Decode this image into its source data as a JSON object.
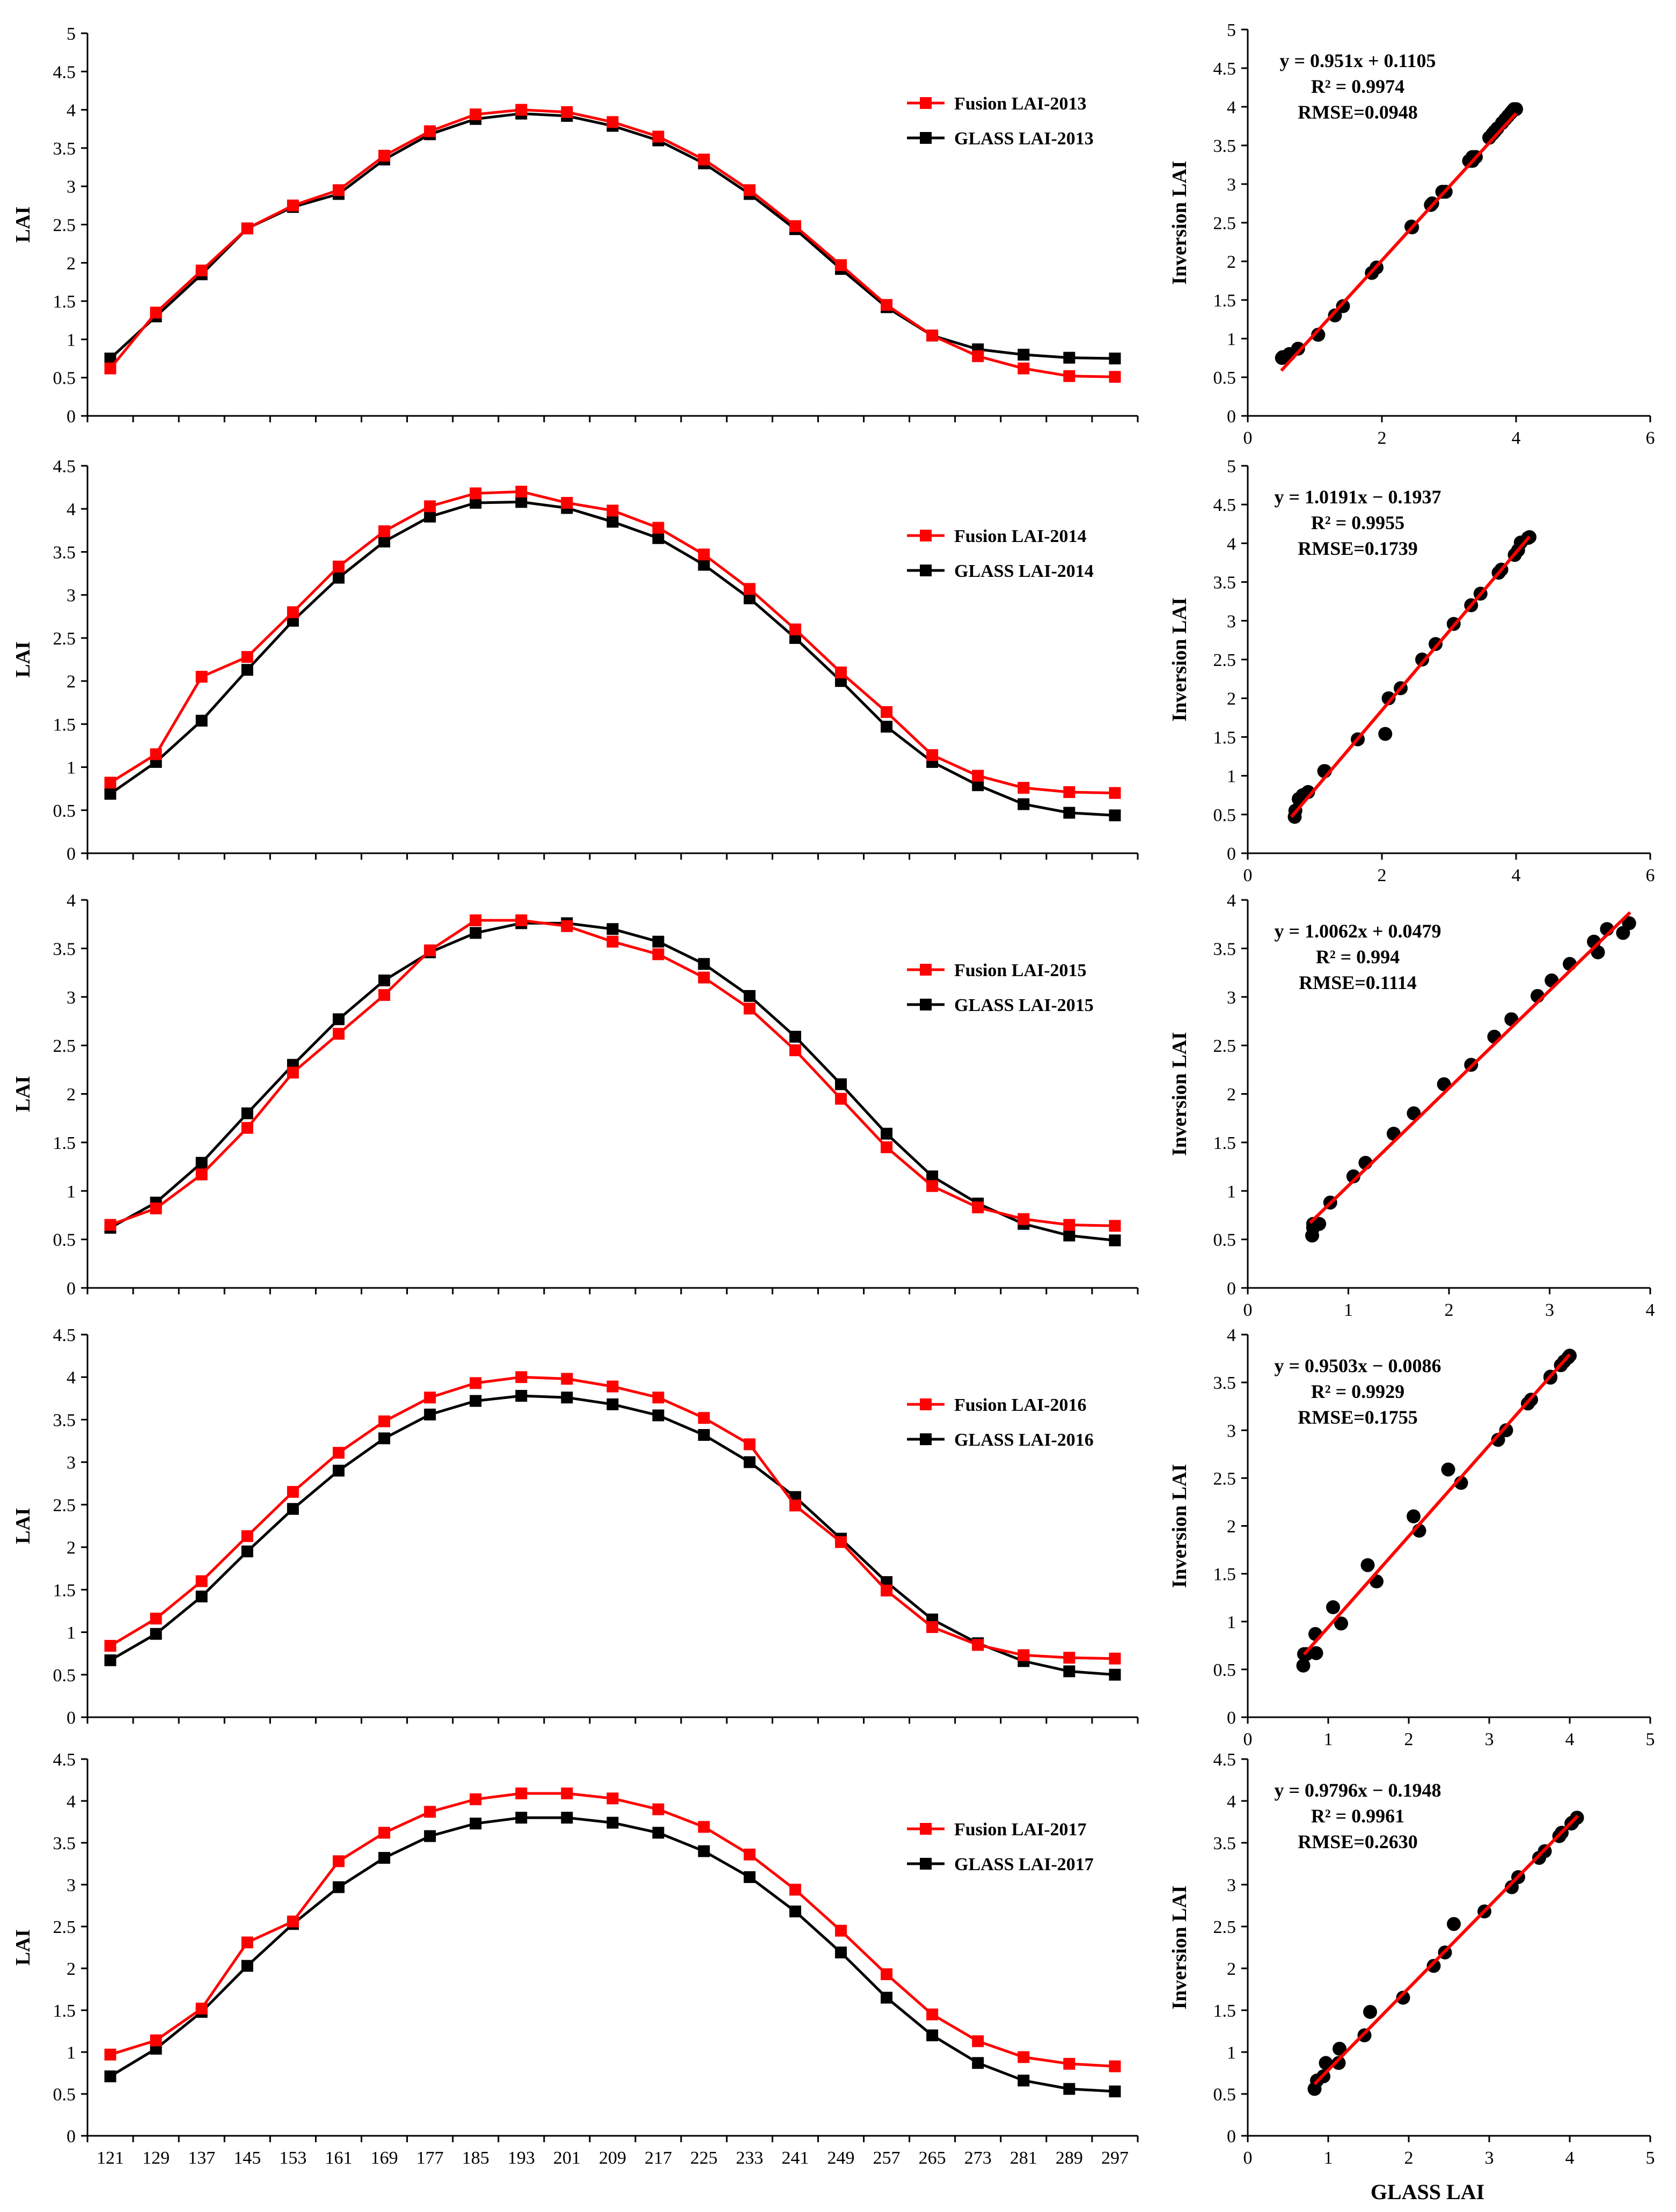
{
  "figure": {
    "xlabel_shared": "GLASS LAI",
    "colors": {
      "fusion": "#ff0000",
      "glass": "#000000",
      "fit": "#ff0000",
      "axis": "#000000"
    }
  },
  "chart_data": [
    {
      "type": "line",
      "year": "2013",
      "ylabel": "LAI",
      "x": [
        121,
        129,
        137,
        145,
        153,
        161,
        169,
        177,
        185,
        193,
        201,
        209,
        217,
        225,
        233,
        241,
        249,
        257,
        265,
        273,
        281,
        289,
        297
      ],
      "ylim": [
        0,
        5
      ],
      "yticks": [
        "0",
        "0.5",
        "1",
        "1.5",
        "2",
        "2.5",
        "3",
        "3.5",
        "4",
        "4.5",
        "5"
      ],
      "series": [
        {
          "name": "Fusion LAI-2013",
          "color": "#ff0000",
          "values": [
            0.62,
            1.35,
            1.9,
            2.45,
            2.75,
            2.95,
            3.4,
            3.72,
            3.94,
            4.0,
            3.97,
            3.84,
            3.65,
            3.35,
            2.95,
            2.48,
            1.97,
            1.45,
            1.05,
            0.78,
            0.62,
            0.52,
            0.51
          ]
        },
        {
          "name": "GLASS LAI-2013",
          "color": "#000000",
          "values": [
            0.75,
            1.3,
            1.85,
            2.45,
            2.73,
            2.9,
            3.35,
            3.68,
            3.88,
            3.95,
            3.92,
            3.79,
            3.6,
            3.3,
            2.9,
            2.44,
            1.92,
            1.42,
            1.05,
            0.87,
            0.8,
            0.76,
            0.75
          ]
        }
      ]
    },
    {
      "type": "scatter",
      "year": "2013",
      "ylabel": "Inversion LAI",
      "equation": "y = 0.951x + 0.1105",
      "r2": "R² = 0.9974",
      "rmse": "RMSE=0.0948",
      "slope": 0.951,
      "intercept": 0.1105,
      "fit_x": [
        0.5,
        4.0
      ],
      "xlim": [
        0,
        6
      ],
      "ylim": [
        0,
        5
      ],
      "xticks": [
        "0",
        "2",
        "4",
        "6"
      ],
      "yticks": [
        "0",
        "0.5",
        "1",
        "1.5",
        "2",
        "2.5",
        "3",
        "3.5",
        "4",
        "4.5",
        "5"
      ],
      "x": [
        0.51,
        0.52,
        0.62,
        0.75,
        1.05,
        1.05,
        1.3,
        1.42,
        1.85,
        1.92,
        2.45,
        2.44,
        2.73,
        2.75,
        2.9,
        2.95,
        3.3,
        3.35,
        3.35,
        3.4,
        3.6,
        3.65,
        3.68,
        3.72,
        3.79,
        3.84,
        3.88,
        3.92,
        3.94,
        3.95,
        3.97,
        4.0
      ],
      "y": [
        0.75,
        0.76,
        0.8,
        0.87,
        1.05,
        1.05,
        1.3,
        1.42,
        1.85,
        1.92,
        2.44,
        2.45,
        2.73,
        2.75,
        2.9,
        2.9,
        3.3,
        3.3,
        3.35,
        3.35,
        3.6,
        3.65,
        3.68,
        3.72,
        3.79,
        3.84,
        3.88,
        3.92,
        3.94,
        3.95,
        3.97,
        3.97
      ]
    },
    {
      "type": "line",
      "year": "2014",
      "ylabel": "LAI",
      "x": [
        121,
        129,
        137,
        145,
        153,
        161,
        169,
        177,
        185,
        193,
        201,
        209,
        217,
        225,
        233,
        241,
        249,
        257,
        265,
        273,
        281,
        289,
        297
      ],
      "ylim": [
        0,
        4.5
      ],
      "yticks": [
        "0",
        "0.5",
        "1",
        "1.5",
        "2",
        "2.5",
        "3",
        "3.5",
        "4",
        "4.5"
      ],
      "series": [
        {
          "name": "Fusion LAI-2014",
          "color": "#ff0000",
          "values": [
            0.82,
            1.15,
            2.05,
            2.28,
            2.8,
            3.33,
            3.74,
            4.03,
            4.18,
            4.2,
            4.07,
            3.98,
            3.78,
            3.47,
            3.07,
            2.6,
            2.1,
            1.64,
            1.14,
            0.9,
            0.76,
            0.71,
            0.7
          ]
        },
        {
          "name": "GLASS LAI-2014",
          "color": "#000000",
          "values": [
            0.69,
            1.06,
            1.54,
            2.13,
            2.7,
            3.2,
            3.62,
            3.91,
            4.07,
            4.08,
            4.01,
            3.85,
            3.66,
            3.35,
            2.96,
            2.5,
            2.0,
            1.47,
            1.06,
            0.79,
            0.57,
            0.47,
            0.44
          ]
        }
      ]
    },
    {
      "type": "scatter",
      "year": "2014",
      "ylabel": "Inversion LAI",
      "equation": "y = 1.0191x − 0.1937",
      "r2": "R² = 0.9955",
      "rmse": "RMSE=0.1739",
      "slope": 1.0191,
      "intercept": -0.1937,
      "fit_x": [
        0.65,
        4.2
      ],
      "xlim": [
        0,
        6
      ],
      "ylim": [
        0,
        5
      ],
      "xticks": [
        "0",
        "2",
        "4",
        "6"
      ],
      "yticks": [
        "0",
        "0.5",
        "1",
        "1.5",
        "2",
        "2.5",
        "3",
        "3.5",
        "4",
        "4.5",
        "5"
      ],
      "x": [
        0.7,
        0.71,
        0.76,
        0.82,
        0.9,
        1.14,
        1.15,
        1.64,
        2.05,
        2.1,
        2.28,
        2.6,
        2.8,
        3.07,
        3.33,
        3.47,
        3.74,
        3.78,
        3.98,
        4.03,
        4.07,
        4.18,
        4.2
      ],
      "y": [
        0.47,
        0.55,
        0.7,
        0.75,
        0.79,
        1.06,
        1.06,
        1.47,
        1.54,
        2.0,
        2.13,
        2.5,
        2.7,
        2.96,
        3.2,
        3.35,
        3.62,
        3.66,
        3.85,
        3.91,
        4.01,
        4.07,
        4.08
      ]
    },
    {
      "type": "line",
      "year": "2015",
      "ylabel": "LAI",
      "x": [
        121,
        129,
        137,
        145,
        153,
        161,
        169,
        177,
        185,
        193,
        201,
        209,
        217,
        225,
        233,
        241,
        249,
        257,
        265,
        273,
        281,
        289,
        297
      ],
      "ylim": [
        0,
        4
      ],
      "yticks": [
        "0",
        "0.5",
        "1",
        "1.5",
        "2",
        "2.5",
        "3",
        "3.5",
        "4"
      ],
      "series": [
        {
          "name": "Fusion LAI-2015",
          "color": "#ff0000",
          "values": [
            0.65,
            0.82,
            1.17,
            1.65,
            2.22,
            2.62,
            3.02,
            3.48,
            3.79,
            3.79,
            3.73,
            3.57,
            3.44,
            3.2,
            2.88,
            2.45,
            1.95,
            1.45,
            1.05,
            0.83,
            0.71,
            0.65,
            0.64
          ]
        },
        {
          "name": "GLASS LAI-2015",
          "color": "#000000",
          "values": [
            0.62,
            0.88,
            1.29,
            1.8,
            2.3,
            2.77,
            3.17,
            3.46,
            3.66,
            3.76,
            3.76,
            3.7,
            3.57,
            3.34,
            3.01,
            2.59,
            2.1,
            1.59,
            1.15,
            0.87,
            0.66,
            0.54,
            0.49
          ]
        }
      ]
    },
    {
      "type": "scatter",
      "year": "2015",
      "ylabel": "Inversion LAI",
      "equation": "y = 1.0062x + 0.0479",
      "r2": "R² = 0.994",
      "rmse": "RMSE=0.1114",
      "slope": 1.0062,
      "intercept": 0.0479,
      "fit_x": [
        0.62,
        3.8
      ],
      "xlim": [
        0,
        4
      ],
      "ylim": [
        0,
        4
      ],
      "xticks": [
        "0",
        "1",
        "2",
        "3",
        "4"
      ],
      "yticks": [
        "0",
        "0.5",
        "1",
        "1.5",
        "2",
        "2.5",
        "3",
        "3.5",
        "4"
      ],
      "x": [
        0.64,
        0.65,
        0.65,
        0.71,
        0.82,
        1.05,
        1.17,
        1.45,
        1.65,
        1.95,
        2.22,
        2.45,
        2.62,
        2.88,
        3.02,
        3.2,
        3.44,
        3.48,
        3.57,
        3.73,
        3.79,
        3.79
      ],
      "y": [
        0.54,
        0.62,
        0.66,
        0.66,
        0.88,
        1.15,
        1.29,
        1.59,
        1.8,
        2.1,
        2.3,
        2.59,
        2.77,
        3.01,
        3.17,
        3.34,
        3.57,
        3.46,
        3.7,
        3.66,
        3.76,
        3.76
      ]
    },
    {
      "type": "line",
      "year": "2016",
      "ylabel": "LAI",
      "x": [
        121,
        129,
        137,
        145,
        153,
        161,
        169,
        177,
        185,
        193,
        201,
        209,
        217,
        225,
        233,
        241,
        249,
        257,
        265,
        273,
        281,
        289,
        297
      ],
      "ylim": [
        0,
        4.5
      ],
      "yticks": [
        "0",
        "0.5",
        "1",
        "1.5",
        "2",
        "2.5",
        "3",
        "3.5",
        "4",
        "4.5"
      ],
      "series": [
        {
          "name": "Fusion LAI-2016",
          "color": "#ff0000",
          "values": [
            0.84,
            1.16,
            1.6,
            2.13,
            2.65,
            3.11,
            3.48,
            3.76,
            3.93,
            4.0,
            3.98,
            3.89,
            3.76,
            3.52,
            3.21,
            2.49,
            2.06,
            1.49,
            1.06,
            0.85,
            0.73,
            0.7,
            0.69
          ]
        },
        {
          "name": "GLASS LAI-2016",
          "color": "#000000",
          "values": [
            0.67,
            0.98,
            1.42,
            1.95,
            2.45,
            2.9,
            3.28,
            3.56,
            3.72,
            3.78,
            3.76,
            3.68,
            3.55,
            3.32,
            3.0,
            2.59,
            2.1,
            1.59,
            1.15,
            0.87,
            0.66,
            0.54,
            0.5
          ]
        }
      ]
    },
    {
      "type": "scatter",
      "year": "2016",
      "ylabel": "Inversion LAI",
      "equation": "y = 0.9503x − 0.0086",
      "r2": "R² = 0.9929",
      "rmse": "RMSE=0.1755",
      "slope": 0.9503,
      "intercept": -0.0086,
      "fit_x": [
        0.7,
        4.0
      ],
      "xlim": [
        0,
        5
      ],
      "ylim": [
        0,
        4
      ],
      "xticks": [
        "0",
        "1",
        "2",
        "3",
        "4",
        "5"
      ],
      "yticks": [
        "0",
        "0.5",
        "1",
        "1.5",
        "2",
        "2.5",
        "3",
        "3.5",
        "4"
      ],
      "x": [
        0.69,
        0.7,
        0.73,
        0.84,
        0.85,
        1.06,
        1.16,
        1.49,
        1.6,
        2.06,
        2.13,
        2.49,
        2.65,
        3.11,
        3.21,
        3.48,
        3.52,
        3.76,
        3.76,
        3.89,
        3.93,
        3.98,
        4.0
      ],
      "y": [
        0.54,
        0.66,
        0.66,
        0.87,
        0.67,
        1.15,
        0.98,
        1.59,
        1.42,
        2.1,
        1.95,
        2.59,
        2.45,
        2.9,
        3.0,
        3.28,
        3.32,
        3.56,
        3.55,
        3.68,
        3.72,
        3.76,
        3.78
      ]
    },
    {
      "type": "line",
      "year": "2017",
      "ylabel": "LAI",
      "x": [
        121,
        129,
        137,
        145,
        153,
        161,
        169,
        177,
        185,
        193,
        201,
        209,
        217,
        225,
        233,
        241,
        249,
        257,
        265,
        273,
        281,
        289,
        297
      ],
      "ylim": [
        0,
        4.5
      ],
      "yticks": [
        "0",
        "0.5",
        "1",
        "1.5",
        "2",
        "2.5",
        "3",
        "3.5",
        "4",
        "4.5"
      ],
      "series": [
        {
          "name": "Fusion LAI-2017",
          "color": "#ff0000",
          "values": [
            0.97,
            1.14,
            1.52,
            2.31,
            2.56,
            3.28,
            3.62,
            3.87,
            4.02,
            4.09,
            4.09,
            4.03,
            3.9,
            3.69,
            3.36,
            2.94,
            2.45,
            1.93,
            1.45,
            1.13,
            0.94,
            0.86,
            0.83
          ]
        },
        {
          "name": "GLASS LAI-2017",
          "color": "#000000",
          "values": [
            0.71,
            1.04,
            1.48,
            2.03,
            2.53,
            2.97,
            3.32,
            3.58,
            3.73,
            3.8,
            3.8,
            3.74,
            3.62,
            3.4,
            3.09,
            2.68,
            2.19,
            1.65,
            1.2,
            0.87,
            0.66,
            0.56,
            0.53
          ]
        }
      ]
    },
    {
      "type": "scatter",
      "year": "2017",
      "ylabel": "Inversion LAI",
      "equation": "y = 0.9796x − 0.1948",
      "r2": "R² = 0.9961",
      "rmse": "RMSE=0.2630",
      "slope": 0.9796,
      "intercept": -0.1948,
      "fit_x": [
        0.83,
        4.1
      ],
      "xlim": [
        0,
        5
      ],
      "ylim": [
        0,
        4.5
      ],
      "xticks": [
        "0",
        "1",
        "2",
        "3",
        "4",
        "5"
      ],
      "yticks": [
        "0",
        "0.5",
        "1",
        "1.5",
        "2",
        "2.5",
        "3",
        "3.5",
        "4",
        "4.5"
      ],
      "x": [
        0.83,
        0.86,
        0.94,
        0.97,
        1.13,
        1.14,
        1.45,
        1.52,
        1.93,
        2.31,
        2.45,
        2.56,
        2.94,
        3.28,
        3.36,
        3.62,
        3.69,
        3.87,
        3.9,
        4.02,
        4.03,
        4.09,
        4.09
      ],
      "y": [
        0.56,
        0.66,
        0.71,
        0.87,
        0.87,
        1.04,
        1.2,
        1.48,
        1.65,
        2.03,
        2.19,
        2.53,
        2.68,
        2.97,
        3.09,
        3.32,
        3.4,
        3.58,
        3.62,
        3.73,
        3.74,
        3.8,
        3.8
      ]
    }
  ]
}
